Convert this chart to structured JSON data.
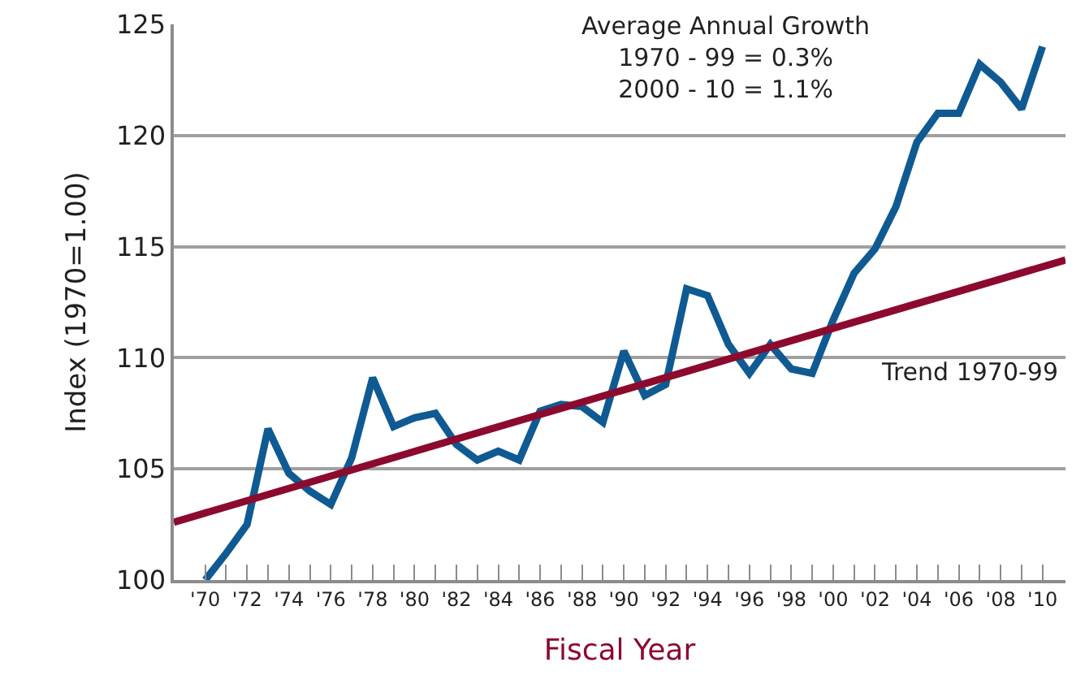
{
  "chart_data": {
    "type": "line",
    "xlabel": "Fiscal Year",
    "ylabel": "Index (1970=1.00)",
    "annotations": [
      "Average Annual Growth\n1970 - 99 = 0.3%\n2000 - 10 = 1.1%"
    ],
    "xlim": [
      1968.5,
      2011.1
    ],
    "ylim": [
      100,
      125
    ],
    "yticks": [
      100,
      105,
      110,
      115,
      120,
      125
    ],
    "xticks": [
      {
        "value": 1970,
        "label": "'70"
      },
      {
        "value": 1971,
        "label": null
      },
      {
        "value": 1972,
        "label": "'72"
      },
      {
        "value": 1973,
        "label": null
      },
      {
        "value": 1974,
        "label": "'74"
      },
      {
        "value": 1975,
        "label": null
      },
      {
        "value": 1976,
        "label": "'76"
      },
      {
        "value": 1977,
        "label": null
      },
      {
        "value": 1978,
        "label": "'78"
      },
      {
        "value": 1979,
        "label": null
      },
      {
        "value": 1980,
        "label": "'80"
      },
      {
        "value": 1981,
        "label": null
      },
      {
        "value": 1982,
        "label": "'82"
      },
      {
        "value": 1983,
        "label": null
      },
      {
        "value": 1984,
        "label": "'84"
      },
      {
        "value": 1985,
        "label": null
      },
      {
        "value": 1986,
        "label": "'86"
      },
      {
        "value": 1987,
        "label": null
      },
      {
        "value": 1988,
        "label": "'88"
      },
      {
        "value": 1989,
        "label": null
      },
      {
        "value": 1990,
        "label": "'90"
      },
      {
        "value": 1991,
        "label": null
      },
      {
        "value": 1992,
        "label": "'92"
      },
      {
        "value": 1993,
        "label": null
      },
      {
        "value": 1994,
        "label": "'94"
      },
      {
        "value": 1995,
        "label": null
      },
      {
        "value": 1996,
        "label": "'96"
      },
      {
        "value": 1997,
        "label": null
      },
      {
        "value": 1998,
        "label": "'98"
      },
      {
        "value": 1999,
        "label": null
      },
      {
        "value": 2000,
        "label": "'00"
      },
      {
        "value": 2001,
        "label": null
      },
      {
        "value": 2002,
        "label": "'02"
      },
      {
        "value": 2003,
        "label": null
      },
      {
        "value": 2004,
        "label": "'04"
      },
      {
        "value": 2005,
        "label": null
      },
      {
        "value": 2006,
        "label": "'06"
      },
      {
        "value": 2007,
        "label": null
      },
      {
        "value": 2008,
        "label": "'08"
      },
      {
        "value": 2009,
        "label": null
      },
      {
        "value": 2010,
        "label": "'10"
      }
    ],
    "grid": "y",
    "legend": false,
    "marker": "none",
    "line_style": "solid",
    "x": [
      1970,
      1971,
      1972,
      1973,
      1974,
      1975,
      1976,
      1977,
      1978,
      1979,
      1980,
      1981,
      1982,
      1983,
      1984,
      1985,
      1986,
      1987,
      1988,
      1989,
      1990,
      1991,
      1992,
      1993,
      1994,
      1995,
      1996,
      1997,
      1998,
      1999,
      2000,
      2001,
      2002,
      2003,
      2004,
      2005,
      2006,
      2007,
      2008,
      2009,
      2010
    ],
    "series": [
      {
        "color": "#0f5a92",
        "values": [
          100.0,
          101.2,
          102.5,
          106.8,
          104.8,
          104.0,
          103.4,
          105.5,
          109.1,
          106.9,
          107.3,
          107.5,
          106.1,
          105.4,
          105.8,
          105.4,
          107.6,
          107.9,
          107.8,
          107.1,
          110.3,
          108.3,
          108.8,
          113.1,
          112.8,
          110.6,
          109.3,
          110.6,
          109.5,
          109.3,
          111.7,
          113.8,
          114.9,
          116.8,
          119.7,
          121.0,
          121.0,
          123.2,
          122.4,
          121.2,
          124.0
        ]
      },
      {
        "name": "Trend 1970-99",
        "color": "#8c0a2e",
        "x": [
          1968.5,
          2011.1
        ],
        "values": [
          102.6,
          114.4
        ]
      }
    ]
  }
}
